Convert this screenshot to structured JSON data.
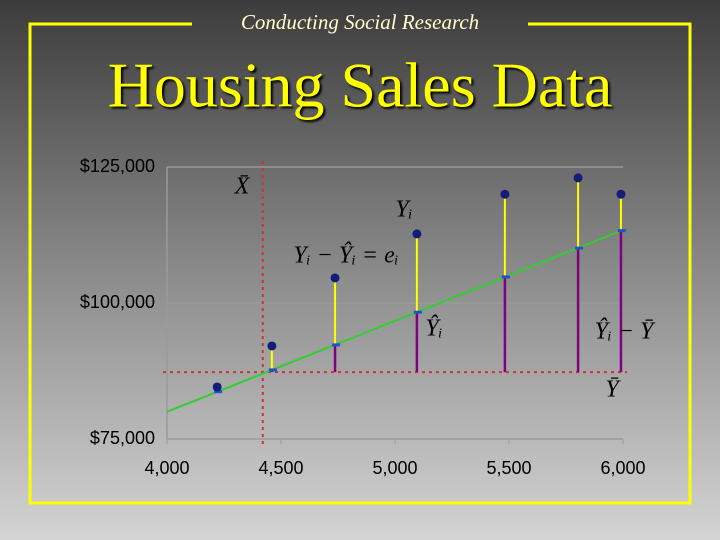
{
  "header": "Conducting Social Research",
  "chart_data": {
    "type": "scatter",
    "title": "Housing Sales Data",
    "x": [
      4220,
      4460,
      4737,
      5096,
      5482,
      5803,
      5991
    ],
    "values": [
      84560,
      92100,
      104600,
      112700,
      120000,
      123000,
      120000
    ],
    "color": "#141c7a",
    "predicted": [
      83700,
      87700,
      92300,
      98300,
      104800,
      110100,
      113300
    ],
    "predicted_color": "#1e50d0",
    "fit_x": [
      4000,
      6000
    ],
    "fit_values": [
      80000,
      113420
    ],
    "fit_color": "#33cc33",
    "residual_color": "#ffff00",
    "deviation_color": "#800080",
    "mean_x": 4420,
    "mean_y": 87300,
    "mean_color": "#cc3333",
    "xlim": [
      4000,
      6000
    ],
    "xticks": [
      {
        "value": 4000,
        "label": "4,000"
      },
      {
        "value": 4500,
        "label": "4,500"
      },
      {
        "value": 5000,
        "label": "5,000"
      },
      {
        "value": 5500,
        "label": "5,500"
      },
      {
        "value": 6000,
        "label": "6,000"
      }
    ],
    "ylim": [
      75000,
      125000
    ],
    "yticks": [
      {
        "value": 75000,
        "label": "$75,000"
      },
      {
        "value": 100000,
        "label": "$100,000"
      },
      {
        "value": 125000,
        "label": "$125,000"
      }
    ],
    "grid": true,
    "annotations": [
      "X̄",
      "Yᵢ",
      "Yᵢ − Ŷᵢ = eᵢ",
      "Ŷᵢ",
      "Ŷᵢ − Ȳ",
      "Ȳ"
    ]
  }
}
